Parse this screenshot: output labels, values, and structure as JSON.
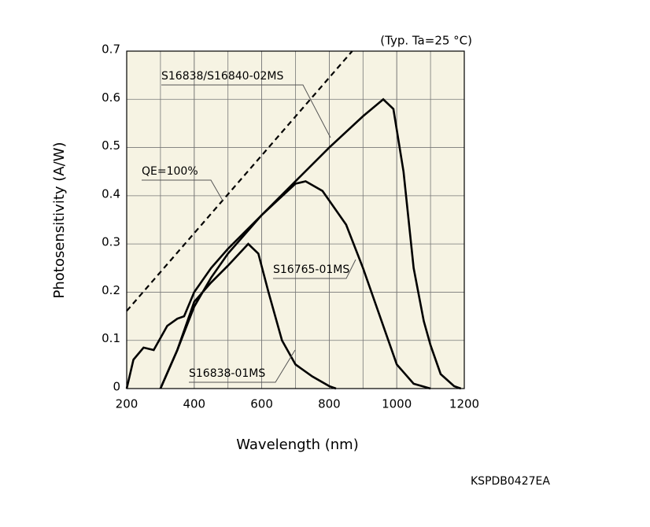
{
  "chart_data": {
    "type": "line",
    "note": "(Typ. Ta=25 °C)",
    "x_label": "Wavelength (nm)",
    "y_label": "Photosensitivity (A/W)",
    "code": "KSPDB0427EA",
    "xlim": [
      200,
      1200
    ],
    "xticks": [
      200,
      400,
      600,
      800,
      1000,
      1200
    ],
    "ylim": [
      0,
      0.7
    ],
    "yticks": [
      0,
      0.1,
      0.2,
      0.3,
      0.4,
      0.5,
      0.6,
      0.7
    ],
    "grid": true,
    "background": "#f6f3e3",
    "series": [
      {
        "name": "S16838/S16840-02MS",
        "color": "#000000",
        "x": [
          200,
          220,
          250,
          280,
          320,
          350,
          370,
          400,
          450,
          500,
          600,
          700,
          800,
          900,
          960,
          990,
          1020,
          1050,
          1080,
          1100,
          1130,
          1170,
          1190
        ],
        "values": [
          0,
          0.06,
          0.085,
          0.08,
          0.13,
          0.145,
          0.15,
          0.2,
          0.25,
          0.29,
          0.36,
          0.43,
          0.5,
          0.565,
          0.6,
          0.58,
          0.45,
          0.25,
          0.14,
          0.09,
          0.03,
          0.005,
          0
        ]
      },
      {
        "name": "QE=100%",
        "color": "#000000",
        "dashed": true,
        "x": [
          200,
          868
        ],
        "values": [
          0.161,
          0.7
        ]
      },
      {
        "name": "S16765-01MS",
        "color": "#000000",
        "x": [
          300,
          350,
          400,
          450,
          500,
          600,
          700,
          730,
          780,
          850,
          900,
          950,
          1000,
          1050,
          1100
        ],
        "values": [
          0,
          0.08,
          0.17,
          0.23,
          0.28,
          0.36,
          0.425,
          0.43,
          0.41,
          0.34,
          0.25,
          0.15,
          0.05,
          0.01,
          0
        ]
      },
      {
        "name": "S16838-01MS",
        "color": "#000000",
        "x": [
          300,
          350,
          400,
          450,
          500,
          560,
          590,
          620,
          660,
          700,
          750,
          800,
          820
        ],
        "values": [
          0,
          0.08,
          0.18,
          0.22,
          0.255,
          0.3,
          0.28,
          0.2,
          0.1,
          0.05,
          0.025,
          0.005,
          0
        ]
      }
    ]
  }
}
